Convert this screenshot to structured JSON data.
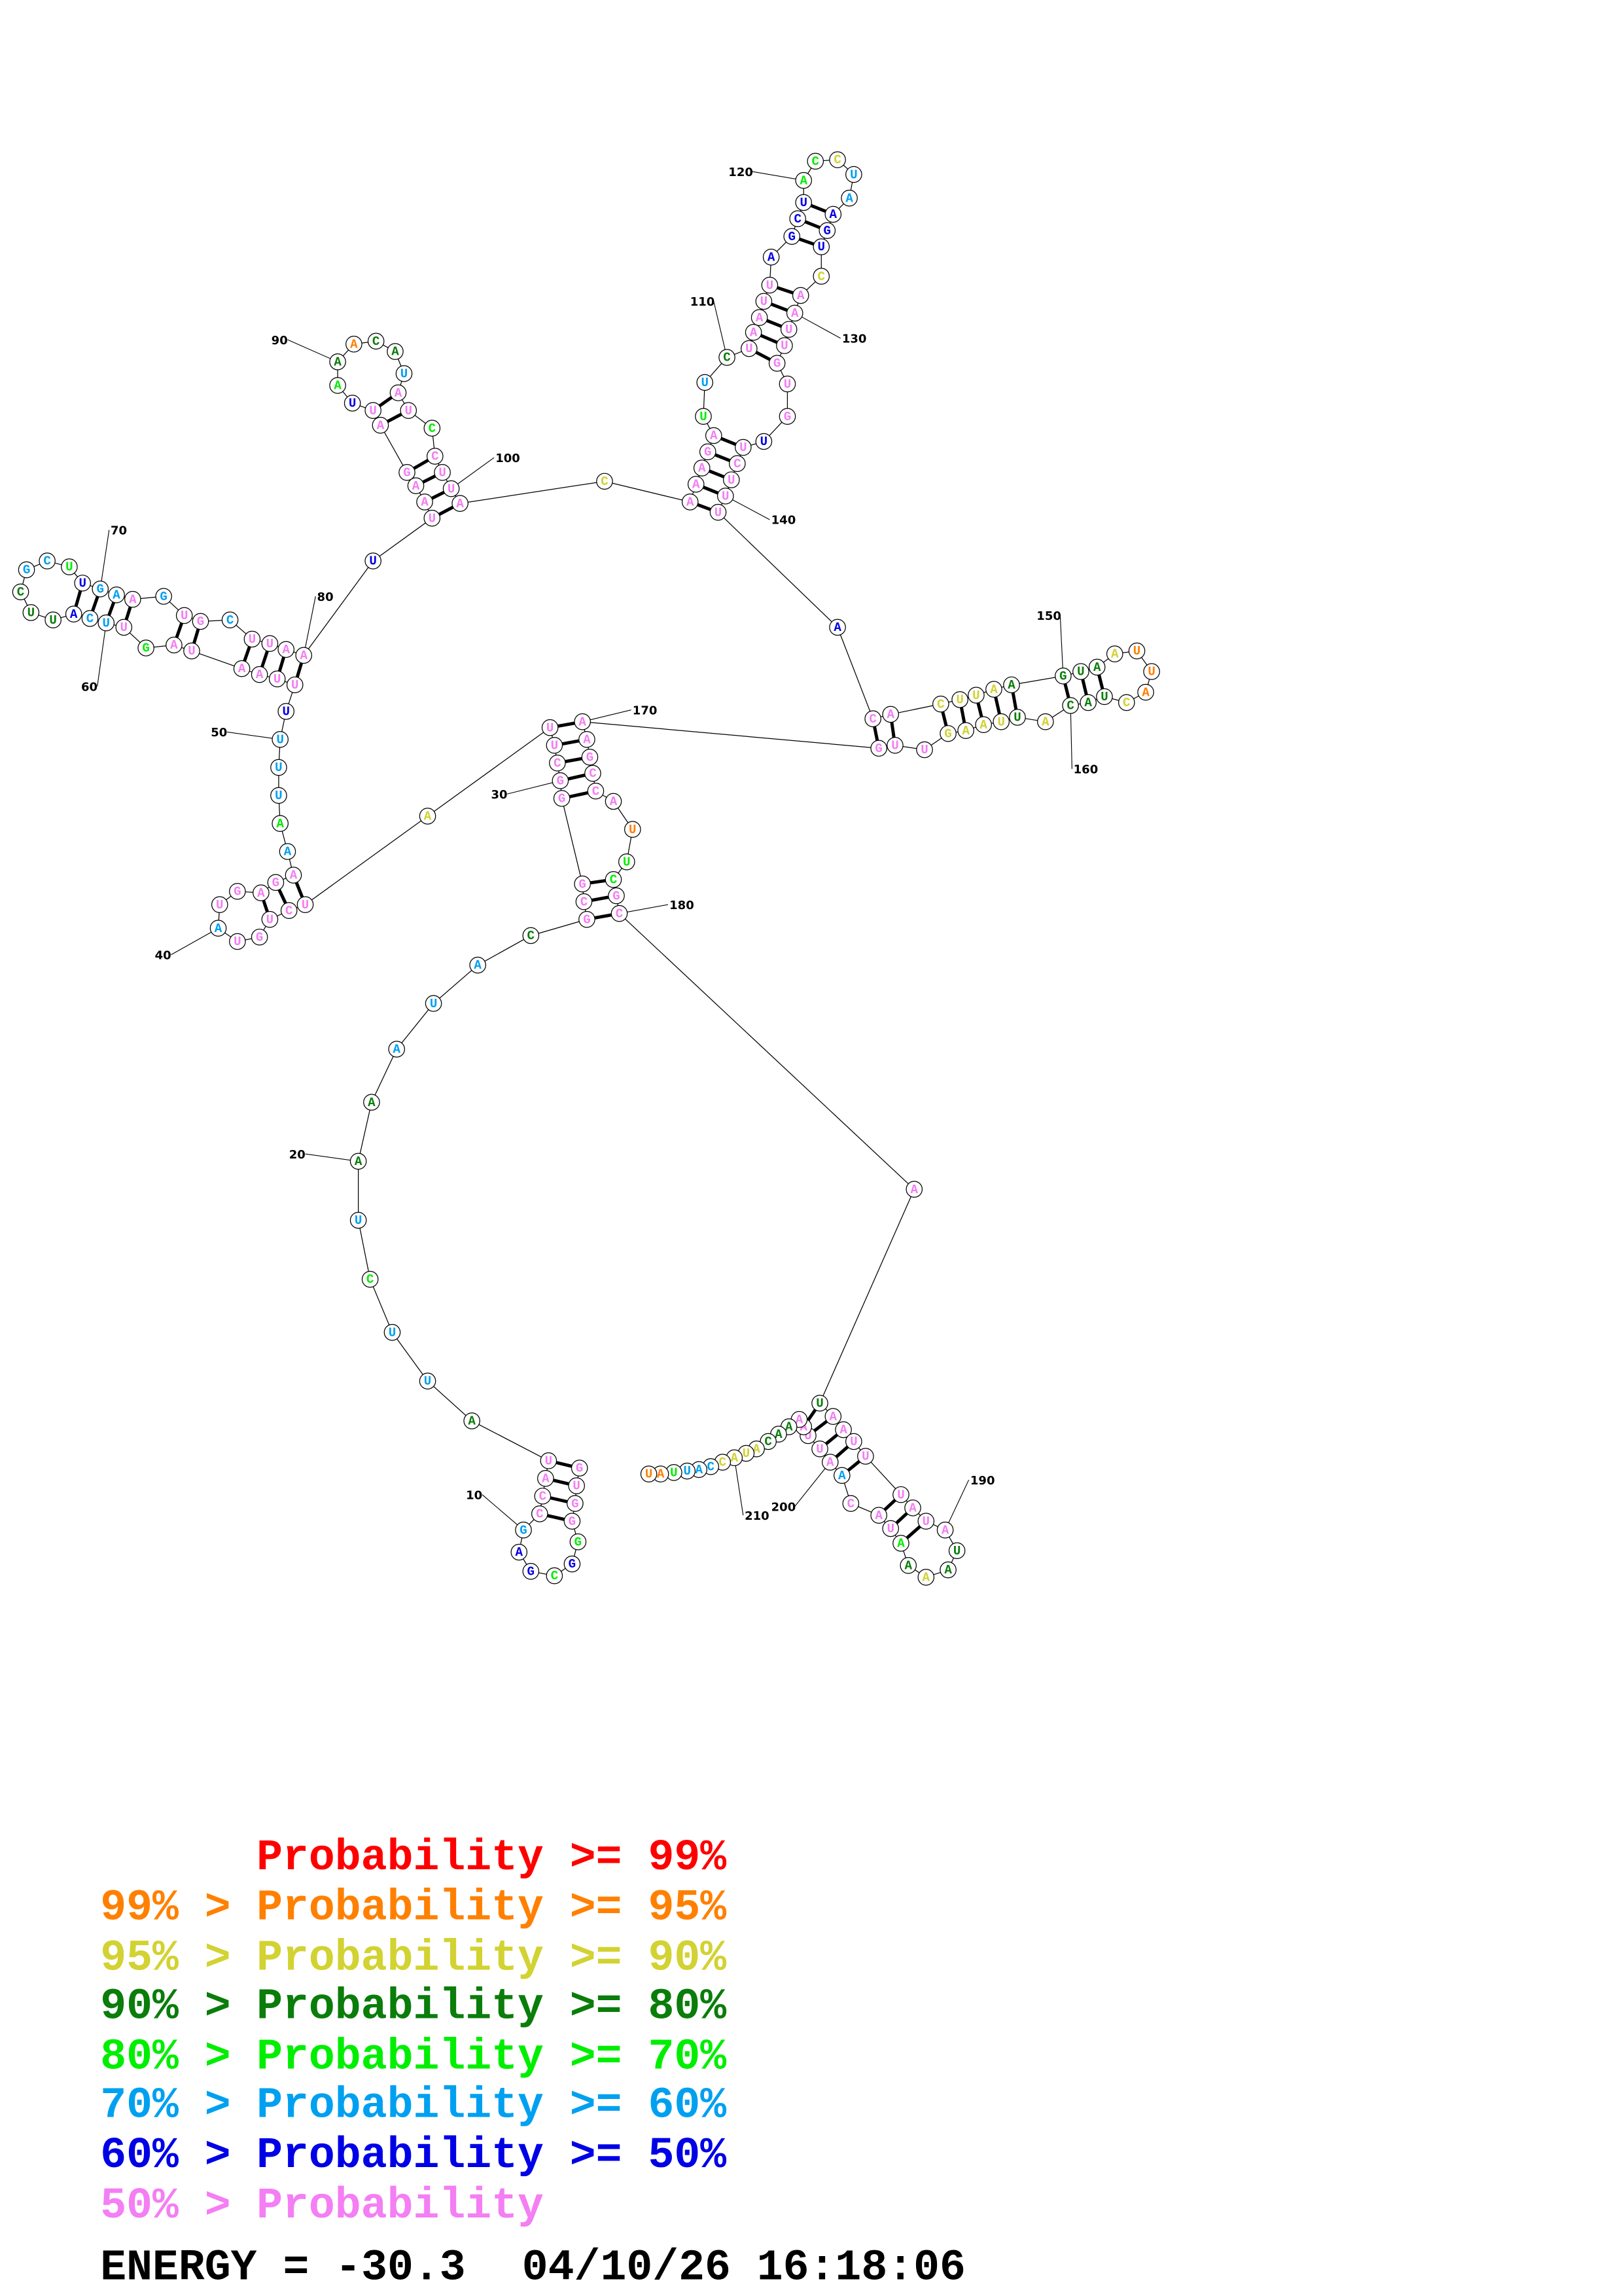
{
  "structure": {
    "sequence": "GUGGGGCGAGCCAUAUUCUAAAUACGCGGGCUUAUCUGUAUGAGAAAUUUUUUAAUAGUUCAUUCGCUUGAAGUGCUUAAUUAAGAUUAAACAUAUCCUUACAAAGAUUCUAAUUAGCUACCUAAGUCAAUUGUGUUCUUUACACUUAAGUAAUUACUACAUUAAGUUGAAGCCAUUCGCAUAAUUUAUAUAAAAUACAAUUAAAACAUACCAUUAU",
    "probability_bins": "ppppgbgbbcppppdccgcddcccdppppppppypppppcpppppcgcccbppppppgpccbdddccgbccpcppcppppbppppppbgdoddcppgppppypppppgcdpppppbbbbggyccbbbypppppppbpppppbppyyyyddddyoooydddydyyyypppppppppoggpppdppppppppddydgpppcpppppdddyyyycccgooo",
    "pairs": [
      [
        1,
        14
      ],
      [
        2,
        13
      ],
      [
        3,
        12
      ],
      [
        4,
        11
      ],
      [
        26,
        180
      ],
      [
        27,
        179
      ],
      [
        28,
        178
      ],
      [
        29,
        174
      ],
      [
        30,
        173
      ],
      [
        31,
        172
      ],
      [
        32,
        171
      ],
      [
        33,
        170
      ],
      [
        35,
        45
      ],
      [
        36,
        44
      ],
      [
        37,
        43
      ],
      [
        52,
        80
      ],
      [
        53,
        79
      ],
      [
        54,
        78
      ],
      [
        55,
        77
      ],
      [
        56,
        75
      ],
      [
        57,
        74
      ],
      [
        59,
        72
      ],
      [
        60,
        71
      ],
      [
        61,
        70
      ],
      [
        62,
        69
      ],
      [
        82,
        101
      ],
      [
        83,
        100
      ],
      [
        84,
        99
      ],
      [
        85,
        98
      ],
      [
        86,
        96
      ],
      [
        87,
        95
      ],
      [
        103,
        141
      ],
      [
        104,
        140
      ],
      [
        105,
        139
      ],
      [
        106,
        138
      ],
      [
        107,
        137
      ],
      [
        111,
        133
      ],
      [
        112,
        132
      ],
      [
        113,
        131
      ],
      [
        114,
        130
      ],
      [
        115,
        129
      ],
      [
        117,
        127
      ],
      [
        118,
        126
      ],
      [
        119,
        125
      ],
      [
        143,
        169
      ],
      [
        144,
        168
      ],
      [
        145,
        166
      ],
      [
        146,
        165
      ],
      [
        147,
        164
      ],
      [
        148,
        163
      ],
      [
        149,
        162
      ],
      [
        150,
        160
      ],
      [
        151,
        159
      ],
      [
        152,
        158
      ],
      [
        182,
        203
      ],
      [
        183,
        202
      ],
      [
        184,
        201
      ],
      [
        185,
        200
      ],
      [
        186,
        199
      ],
      [
        187,
        197
      ],
      [
        188,
        196
      ],
      [
        189,
        195
      ]
    ],
    "position_labels": [
      "10",
      "20",
      "30",
      "40",
      "50",
      "60",
      "70",
      "80",
      "90",
      "100",
      "110",
      "120",
      "130",
      "140",
      "150",
      "160",
      "170",
      "180",
      "190",
      "200",
      "210"
    ]
  },
  "bin_colors": {
    "r": "#ff0000",
    "o": "#ff8000",
    "y": "#d2d232",
    "d": "#0a7d0a",
    "g": "#00ee00",
    "c": "#00a0f0",
    "b": "#0000e6",
    "p": "#f47ef4"
  },
  "legend": {
    "rows": [
      {
        "prefix": "",
        "label": "Probability >= 99%",
        "color": "#ff0000"
      },
      {
        "prefix": "99% >",
        "label": "Probability >= 95%",
        "color": "#ff8000"
      },
      {
        "prefix": "95% >",
        "label": "Probability >= 90%",
        "color": "#d2d232"
      },
      {
        "prefix": "90% >",
        "label": "Probability >= 80%",
        "color": "#0a7d0a"
      },
      {
        "prefix": "80% >",
        "label": "Probability >= 70%",
        "color": "#00ee00"
      },
      {
        "prefix": "70% >",
        "label": "Probability >= 60%",
        "color": "#00a0f0"
      },
      {
        "prefix": "60% >",
        "label": "Probability >= 50%",
        "color": "#0000e6"
      },
      {
        "prefix": "50% >",
        "label": "Probability",
        "color": "#f47ef4"
      }
    ]
  },
  "footer": {
    "energy": "ENERGY = -30.3",
    "timestamp": "04/10/26 16:18:06"
  }
}
